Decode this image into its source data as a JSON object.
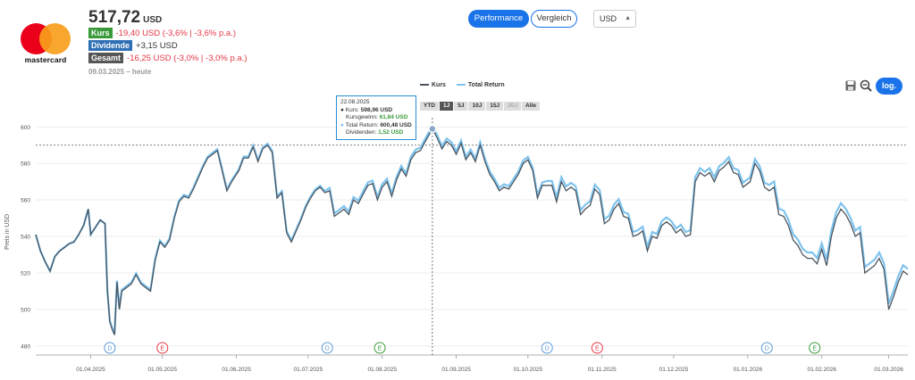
{
  "logo": {
    "wordmark": "mastercard"
  },
  "header": {
    "price": "517,72",
    "currency": "USD",
    "rows": [
      {
        "label": "Kurs",
        "color": "#3a9a3a",
        "value": "-19,40 USD (-3,6% | -3,6% p.a.)",
        "negative": true
      },
      {
        "label": "Dividende",
        "color": "#2e6fb5",
        "value": "+3,15 USD",
        "negative": false
      },
      {
        "label": "Gesamt",
        "color": "#555555",
        "value": "-16,25 USD (-3,0% | -3,0% p.a.)",
        "negative": true
      }
    ],
    "date_range": "09.03.2025 – heute"
  },
  "controls": {
    "performance": "Performance",
    "vergleich": "Vergleich",
    "currency_select": "USD",
    "log_button": "log."
  },
  "legend": {
    "kurs": "Kurs",
    "total_return": "Total Return"
  },
  "ranges": [
    {
      "label": "YTD",
      "state": "normal"
    },
    {
      "label": "1J",
      "state": "active"
    },
    {
      "label": "5J",
      "state": "normal"
    },
    {
      "label": "10J",
      "state": "normal"
    },
    {
      "label": "15J",
      "state": "normal"
    },
    {
      "label": "20J",
      "state": "disabled"
    },
    {
      "label": "Alle",
      "state": "normal"
    }
  ],
  "tooltip": {
    "date": "22.08.2025",
    "kurs_label": "Kurs:",
    "kurs_value": "598,96 USD",
    "kursgewinn_label": "Kursgewinn:",
    "kursgewinn_value": "61,84 USD",
    "tr_label": "Total Return:",
    "tr_value": "600,48 USD",
    "div_label": "Dividenden:",
    "div_value": "1,52 USD"
  },
  "chart_data": {
    "type": "line",
    "ylabel": "Preis in USD",
    "ylim": [
      475,
      607
    ],
    "yticks": [
      480,
      500,
      520,
      540,
      560,
      580,
      600
    ],
    "x_start": "2025-03-09",
    "x_end": "2026-03-09",
    "x_ticks": [
      "01.04.2025",
      "01.05.2025",
      "01.06.2025",
      "01.07.2025",
      "01.08.2025",
      "01.09.2025",
      "01.10.2025",
      "01.11.2025",
      "01.12.2025",
      "01.01.2026",
      "01.02.2026",
      "01.03.2026"
    ],
    "crosshair": {
      "date": "2025-08-22",
      "value": 598.96
    },
    "hline": 590,
    "events": [
      {
        "date": "2025-04-09",
        "type": "D",
        "color": "#5b9bd5"
      },
      {
        "date": "2025-05-01",
        "type": "E",
        "color": "#e63946"
      },
      {
        "date": "2025-07-09",
        "type": "D",
        "color": "#5b9bd5"
      },
      {
        "date": "2025-07-31",
        "type": "E",
        "color": "#3a9a3a"
      },
      {
        "date": "2025-10-09",
        "type": "D",
        "color": "#5b9bd5"
      },
      {
        "date": "2025-10-30",
        "type": "E",
        "color": "#e63946"
      },
      {
        "date": "2026-01-09",
        "type": "D",
        "color": "#5b9bd5"
      },
      {
        "date": "2026-01-29",
        "type": "E",
        "color": "#3a9a3a"
      }
    ],
    "series": [
      {
        "name": "Kurs",
        "color": "#4a5560",
        "points": [
          [
            "2025-03-09",
            541
          ],
          [
            "2025-03-11",
            532
          ],
          [
            "2025-03-13",
            526
          ],
          [
            "2025-03-15",
            521
          ],
          [
            "2025-03-17",
            529
          ],
          [
            "2025-03-19",
            532
          ],
          [
            "2025-03-21",
            534
          ],
          [
            "2025-03-23",
            536
          ],
          [
            "2025-03-25",
            537
          ],
          [
            "2025-03-27",
            541
          ],
          [
            "2025-03-29",
            546
          ],
          [
            "2025-03-31",
            555
          ],
          [
            "2025-04-01",
            541
          ],
          [
            "2025-04-03",
            545
          ],
          [
            "2025-04-05",
            549
          ],
          [
            "2025-04-07",
            547
          ],
          [
            "2025-04-08",
            510
          ],
          [
            "2025-04-09",
            493
          ],
          [
            "2025-04-10",
            489
          ],
          [
            "2025-04-11",
            486
          ],
          [
            "2025-04-12",
            515
          ],
          [
            "2025-04-13",
            500
          ],
          [
            "2025-04-14",
            510
          ],
          [
            "2025-04-16",
            512
          ],
          [
            "2025-04-18",
            514
          ],
          [
            "2025-04-20",
            519
          ],
          [
            "2025-04-22",
            514
          ],
          [
            "2025-04-24",
            512
          ],
          [
            "2025-04-26",
            510
          ],
          [
            "2025-04-28",
            527
          ],
          [
            "2025-04-30",
            537
          ],
          [
            "2025-05-02",
            534
          ],
          [
            "2025-05-04",
            538
          ],
          [
            "2025-05-06",
            550
          ],
          [
            "2025-05-08",
            559
          ],
          [
            "2025-05-10",
            562
          ],
          [
            "2025-05-12",
            561
          ],
          [
            "2025-05-14",
            566
          ],
          [
            "2025-05-16",
            572
          ],
          [
            "2025-05-18",
            578
          ],
          [
            "2025-05-20",
            583
          ],
          [
            "2025-05-22",
            585
          ],
          [
            "2025-05-24",
            587
          ],
          [
            "2025-05-26",
            576
          ],
          [
            "2025-05-28",
            565
          ],
          [
            "2025-05-30",
            570
          ],
          [
            "2025-06-02",
            576
          ],
          [
            "2025-06-04",
            583
          ],
          [
            "2025-06-06",
            583
          ],
          [
            "2025-06-08",
            589
          ],
          [
            "2025-06-10",
            581
          ],
          [
            "2025-06-12",
            588
          ],
          [
            "2025-06-14",
            590
          ],
          [
            "2025-06-16",
            586
          ],
          [
            "2025-06-18",
            561
          ],
          [
            "2025-06-20",
            564
          ],
          [
            "2025-06-22",
            542
          ],
          [
            "2025-06-24",
            537
          ],
          [
            "2025-06-26",
            543
          ],
          [
            "2025-06-28",
            549
          ],
          [
            "2025-06-30",
            556
          ],
          [
            "2025-07-02",
            561
          ],
          [
            "2025-07-04",
            565
          ],
          [
            "2025-07-06",
            567
          ],
          [
            "2025-07-08",
            564
          ],
          [
            "2025-07-10",
            565
          ],
          [
            "2025-07-12",
            551
          ],
          [
            "2025-07-14",
            553
          ],
          [
            "2025-07-16",
            555
          ],
          [
            "2025-07-18",
            552
          ],
          [
            "2025-07-20",
            560
          ],
          [
            "2025-07-22",
            558
          ],
          [
            "2025-07-24",
            563
          ],
          [
            "2025-07-26",
            568
          ],
          [
            "2025-07-28",
            569
          ],
          [
            "2025-07-30",
            560
          ],
          [
            "2025-08-01",
            567
          ],
          [
            "2025-08-03",
            570
          ],
          [
            "2025-08-05",
            562
          ],
          [
            "2025-08-07",
            571
          ],
          [
            "2025-08-09",
            577
          ],
          [
            "2025-08-11",
            573
          ],
          [
            "2025-08-13",
            582
          ],
          [
            "2025-08-15",
            586
          ],
          [
            "2025-08-17",
            587
          ],
          [
            "2025-08-19",
            592
          ],
          [
            "2025-08-22",
            598.96
          ],
          [
            "2025-08-24",
            594
          ],
          [
            "2025-08-26",
            588
          ],
          [
            "2025-08-28",
            592
          ],
          [
            "2025-08-30",
            590
          ],
          [
            "2025-09-01",
            585
          ],
          [
            "2025-09-03",
            591
          ],
          [
            "2025-09-05",
            582
          ],
          [
            "2025-09-07",
            586
          ],
          [
            "2025-09-09",
            581
          ],
          [
            "2025-09-11",
            590
          ],
          [
            "2025-09-13",
            581
          ],
          [
            "2025-09-15",
            574
          ],
          [
            "2025-09-17",
            570
          ],
          [
            "2025-09-19",
            565
          ],
          [
            "2025-09-21",
            567
          ],
          [
            "2025-09-23",
            566
          ],
          [
            "2025-09-25",
            570
          ],
          [
            "2025-09-27",
            574
          ],
          [
            "2025-09-29",
            580
          ],
          [
            "2025-10-01",
            582
          ],
          [
            "2025-10-03",
            576
          ],
          [
            "2025-10-05",
            561
          ],
          [
            "2025-10-07",
            568
          ],
          [
            "2025-10-09",
            568
          ],
          [
            "2025-10-11",
            568
          ],
          [
            "2025-10-13",
            559
          ],
          [
            "2025-10-15",
            570
          ],
          [
            "2025-10-17",
            565
          ],
          [
            "2025-10-19",
            567
          ],
          [
            "2025-10-21",
            565
          ],
          [
            "2025-10-23",
            552
          ],
          [
            "2025-10-25",
            555
          ],
          [
            "2025-10-27",
            557
          ],
          [
            "2025-10-29",
            566
          ],
          [
            "2025-10-31",
            563
          ],
          [
            "2025-11-02",
            547
          ],
          [
            "2025-11-04",
            549
          ],
          [
            "2025-11-06",
            555
          ],
          [
            "2025-11-08",
            558
          ],
          [
            "2025-11-10",
            551
          ],
          [
            "2025-11-12",
            550
          ],
          [
            "2025-11-14",
            540
          ],
          [
            "2025-11-16",
            541
          ],
          [
            "2025-11-18",
            543
          ],
          [
            "2025-11-20",
            532
          ],
          [
            "2025-11-22",
            540
          ],
          [
            "2025-11-24",
            539
          ],
          [
            "2025-11-26",
            546
          ],
          [
            "2025-11-28",
            548
          ],
          [
            "2025-11-30",
            546
          ],
          [
            "2025-12-02",
            542
          ],
          [
            "2025-12-04",
            544
          ],
          [
            "2025-12-06",
            540
          ],
          [
            "2025-12-08",
            541
          ],
          [
            "2025-12-10",
            570
          ],
          [
            "2025-12-12",
            575
          ],
          [
            "2025-12-14",
            573
          ],
          [
            "2025-12-16",
            575
          ],
          [
            "2025-12-18",
            570
          ],
          [
            "2025-12-20",
            576
          ],
          [
            "2025-12-22",
            578
          ],
          [
            "2025-12-24",
            581
          ],
          [
            "2025-12-26",
            575
          ],
          [
            "2025-12-28",
            574
          ],
          [
            "2025-12-30",
            567
          ],
          [
            "2026-01-02",
            570
          ],
          [
            "2026-01-04",
            580
          ],
          [
            "2026-01-06",
            576
          ],
          [
            "2026-01-08",
            567
          ],
          [
            "2026-01-10",
            565
          ],
          [
            "2026-01-12",
            567
          ],
          [
            "2026-01-14",
            552
          ],
          [
            "2026-01-16",
            551
          ],
          [
            "2026-01-18",
            546
          ],
          [
            "2026-01-20",
            538
          ],
          [
            "2026-01-22",
            535
          ],
          [
            "2026-01-24",
            530
          ],
          [
            "2026-01-26",
            528
          ],
          [
            "2026-01-28",
            528
          ],
          [
            "2026-01-30",
            525
          ],
          [
            "2026-02-01",
            533
          ],
          [
            "2026-02-03",
            524
          ],
          [
            "2026-02-05",
            540
          ],
          [
            "2026-02-07",
            550
          ],
          [
            "2026-02-09",
            555
          ],
          [
            "2026-02-11",
            552
          ],
          [
            "2026-02-13",
            547
          ],
          [
            "2026-02-15",
            540
          ],
          [
            "2026-02-17",
            542
          ],
          [
            "2026-02-19",
            520
          ],
          [
            "2026-02-21",
            522
          ],
          [
            "2026-02-23",
            524
          ],
          [
            "2026-02-25",
            528
          ],
          [
            "2026-02-27",
            522
          ],
          [
            "2026-03-01",
            500
          ],
          [
            "2026-03-03",
            507
          ],
          [
            "2026-03-05",
            515
          ],
          [
            "2026-03-07",
            521
          ],
          [
            "2026-03-09",
            519
          ]
        ]
      },
      {
        "name": "Total Return",
        "color": "#7ec3ee",
        "points": []
      }
    ]
  }
}
